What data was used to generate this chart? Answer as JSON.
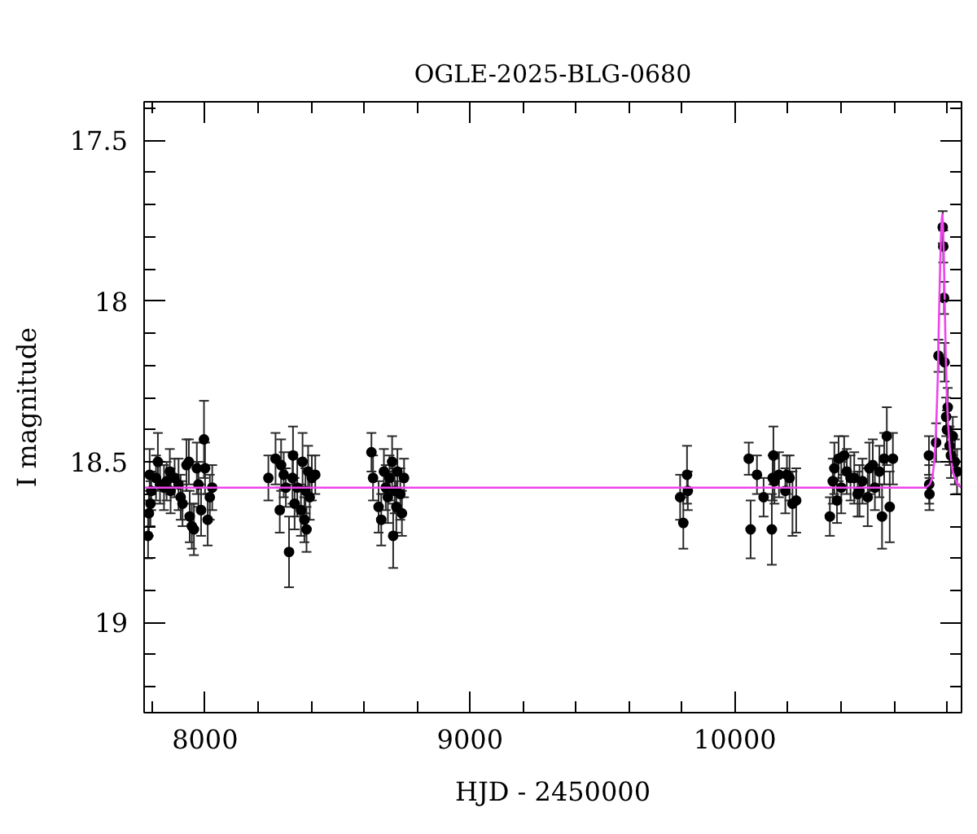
{
  "chart_data": {
    "type": "scatter",
    "title": "OGLE-2025-BLG-0680",
    "xlabel": "HJD - 2450000",
    "ylabel": "I magnitude",
    "xlim": [
      7770,
      10855
    ],
    "ylim": [
      19.28,
      17.38
    ],
    "xticks": [
      {
        "value": 7800,
        "label": null
      },
      8000,
      {
        "value": 8200,
        "label": null
      },
      {
        "value": 8400,
        "label": null
      },
      {
        "value": 8600,
        "label": null
      },
      {
        "value": 8800,
        "label": null
      },
      9000,
      {
        "value": 9200,
        "label": null
      },
      {
        "value": 9400,
        "label": null
      },
      {
        "value": 9600,
        "label": null
      },
      {
        "value": 9800,
        "label": null
      },
      10000,
      {
        "value": 10200,
        "label": null
      },
      {
        "value": 10400,
        "label": null
      },
      {
        "value": 10600,
        "label": null
      },
      {
        "value": 10800,
        "label": null
      }
    ],
    "yticks": [
      {
        "value": 17.4,
        "label": null
      },
      17.5,
      {
        "value": 17.6,
        "label": null
      },
      {
        "value": 17.7,
        "label": null
      },
      {
        "value": 17.8,
        "label": null
      },
      {
        "value": 17.9,
        "label": null
      },
      18,
      {
        "value": 18.1,
        "label": null
      },
      {
        "value": 18.2,
        "label": null
      },
      {
        "value": 18.3,
        "label": null
      },
      {
        "value": 18.4,
        "label": null
      },
      18.5,
      {
        "value": 18.6,
        "label": null
      },
      {
        "value": 18.7,
        "label": null
      },
      {
        "value": 18.8,
        "label": null
      },
      {
        "value": 18.9,
        "label": null
      },
      19,
      {
        "value": 19.1,
        "label": null
      },
      {
        "value": 19.2,
        "label": null
      }
    ],
    "grid": false,
    "series": [
      {
        "color": "#000000",
        "marker": "circle",
        "x": [
          7785,
          7788,
          7791,
          7794,
          7797,
          7815,
          7822,
          7830,
          7845,
          7855,
          7867,
          7870,
          7885,
          7900,
          7908,
          7915,
          7930,
          7939,
          7942,
          7950,
          7958,
          7969,
          7975,
          7985,
          7996,
          8000,
          8010,
          8018,
          8027,
          8239,
          8266,
          8282,
          8287,
          8297,
          8305,
          8317,
          8330,
          8332,
          8338,
          8348,
          8362,
          8368,
          8375,
          8379,
          8383,
          8389,
          8395,
          8403,
          8416,
          8628,
          8634,
          8655,
          8665,
          8675,
          8682,
          8690,
          8696,
          8706,
          8710,
          8716,
          8722,
          8726,
          8737,
          8743,
          8751,
          9793,
          9805,
          9819,
          9822,
          10052,
          10059,
          10083,
          10108,
          10139,
          10142,
          10145,
          10149,
          10166,
          10190,
          10196,
          10206,
          10217,
          10231,
          10358,
          10369,
          10375,
          10385,
          10391,
          10401,
          10412,
          10422,
          10436,
          10450,
          10463,
          10470,
          10481,
          10501,
          10507,
          10520,
          10528,
          10545,
          10555,
          10563,
          10573,
          10584,
          10596,
          10732,
          10733,
          10734,
          10759,
          10768,
          10784,
          10786,
          10789,
          10791,
          10797,
          10800,
          10803,
          10810,
          10815,
          10822,
          10830,
          10838
        ],
        "values": [
          18.73,
          18.66,
          18.54,
          18.63,
          18.59,
          18.55,
          18.5,
          18.57,
          18.58,
          18.56,
          18.53,
          18.59,
          18.55,
          18.57,
          18.61,
          18.63,
          18.51,
          18.5,
          18.67,
          18.7,
          18.71,
          18.52,
          18.57,
          18.65,
          18.43,
          18.52,
          18.68,
          18.61,
          18.58,
          18.55,
          18.49,
          18.65,
          18.51,
          18.54,
          18.58,
          18.78,
          18.55,
          18.48,
          18.63,
          18.58,
          18.65,
          18.5,
          18.68,
          18.59,
          18.71,
          18.53,
          18.61,
          18.55,
          18.54,
          18.47,
          18.55,
          18.64,
          18.68,
          18.53,
          18.58,
          18.61,
          18.55,
          18.5,
          18.73,
          18.59,
          18.64,
          18.53,
          18.6,
          18.66,
          18.55,
          18.61,
          18.69,
          18.54,
          18.59,
          18.49,
          18.71,
          18.54,
          18.61,
          18.71,
          18.55,
          18.48,
          18.56,
          18.54,
          18.59,
          18.54,
          18.55,
          18.63,
          18.62,
          18.67,
          18.56,
          18.52,
          18.62,
          18.49,
          18.58,
          18.48,
          18.53,
          18.55,
          18.55,
          18.6,
          18.59,
          18.56,
          18.61,
          18.52,
          18.51,
          18.58,
          18.53,
          18.67,
          18.49,
          18.42,
          18.64,
          18.49,
          18.48,
          18.57,
          18.6,
          18.44,
          18.17,
          17.77,
          17.83,
          17.99,
          18.19,
          18.36,
          18.4,
          18.33,
          18.45,
          18.48,
          18.42,
          18.5,
          18.53
        ],
        "errors": [
          0.07,
          0.07,
          0.08,
          0.07,
          0.06,
          0.07,
          0.09,
          0.06,
          0.07,
          0.06,
          0.07,
          0.07,
          0.06,
          0.08,
          0.07,
          0.07,
          0.08,
          0.07,
          0.08,
          0.07,
          0.08,
          0.08,
          0.07,
          0.08,
          0.12,
          0.08,
          0.08,
          0.07,
          0.07,
          0.07,
          0.08,
          0.07,
          0.08,
          0.07,
          0.06,
          0.11,
          0.08,
          0.09,
          0.08,
          0.09,
          0.08,
          0.09,
          0.07,
          0.07,
          0.07,
          0.08,
          0.07,
          0.07,
          0.06,
          0.06,
          0.07,
          0.08,
          0.08,
          0.07,
          0.07,
          0.08,
          0.07,
          0.08,
          0.1,
          0.07,
          0.08,
          0.07,
          0.08,
          0.07,
          0.06,
          0.07,
          0.08,
          0.09,
          0.06,
          0.05,
          0.09,
          0.06,
          0.06,
          0.11,
          0.07,
          0.09,
          0.07,
          0.07,
          0.07,
          0.06,
          0.07,
          0.1,
          0.1,
          0.06,
          0.07,
          0.08,
          0.07,
          0.07,
          0.08,
          0.06,
          0.07,
          0.07,
          0.08,
          0.07,
          0.08,
          0.07,
          0.09,
          0.08,
          0.08,
          0.07,
          0.08,
          0.1,
          0.08,
          0.09,
          0.11,
          0.08,
          0.06,
          0.06,
          0.05,
          0.06,
          0.05,
          0.05,
          0.05,
          0.05,
          0.06,
          0.06,
          0.06,
          0.06,
          0.06,
          0.07,
          0.06,
          0.07,
          0.07
        ]
      },
      {
        "type": "line",
        "color": "#ee44ee",
        "x": [
          7770,
          10700,
          10720,
          10735,
          10745,
          10752,
          10759,
          10765,
          10770,
          10774,
          10778,
          10781,
          10783,
          10785,
          10788,
          10791,
          10795,
          10799,
          10804,
          10810,
          10815,
          10822,
          10830,
          10840,
          10855
        ],
        "values": [
          18.58,
          18.58,
          18.58,
          18.57,
          18.55,
          18.5,
          18.4,
          18.25,
          18.05,
          17.9,
          17.78,
          17.74,
          17.73,
          17.76,
          17.85,
          17.98,
          18.15,
          18.28,
          18.38,
          18.45,
          18.49,
          18.53,
          18.55,
          18.57,
          18.58
        ]
      }
    ]
  }
}
